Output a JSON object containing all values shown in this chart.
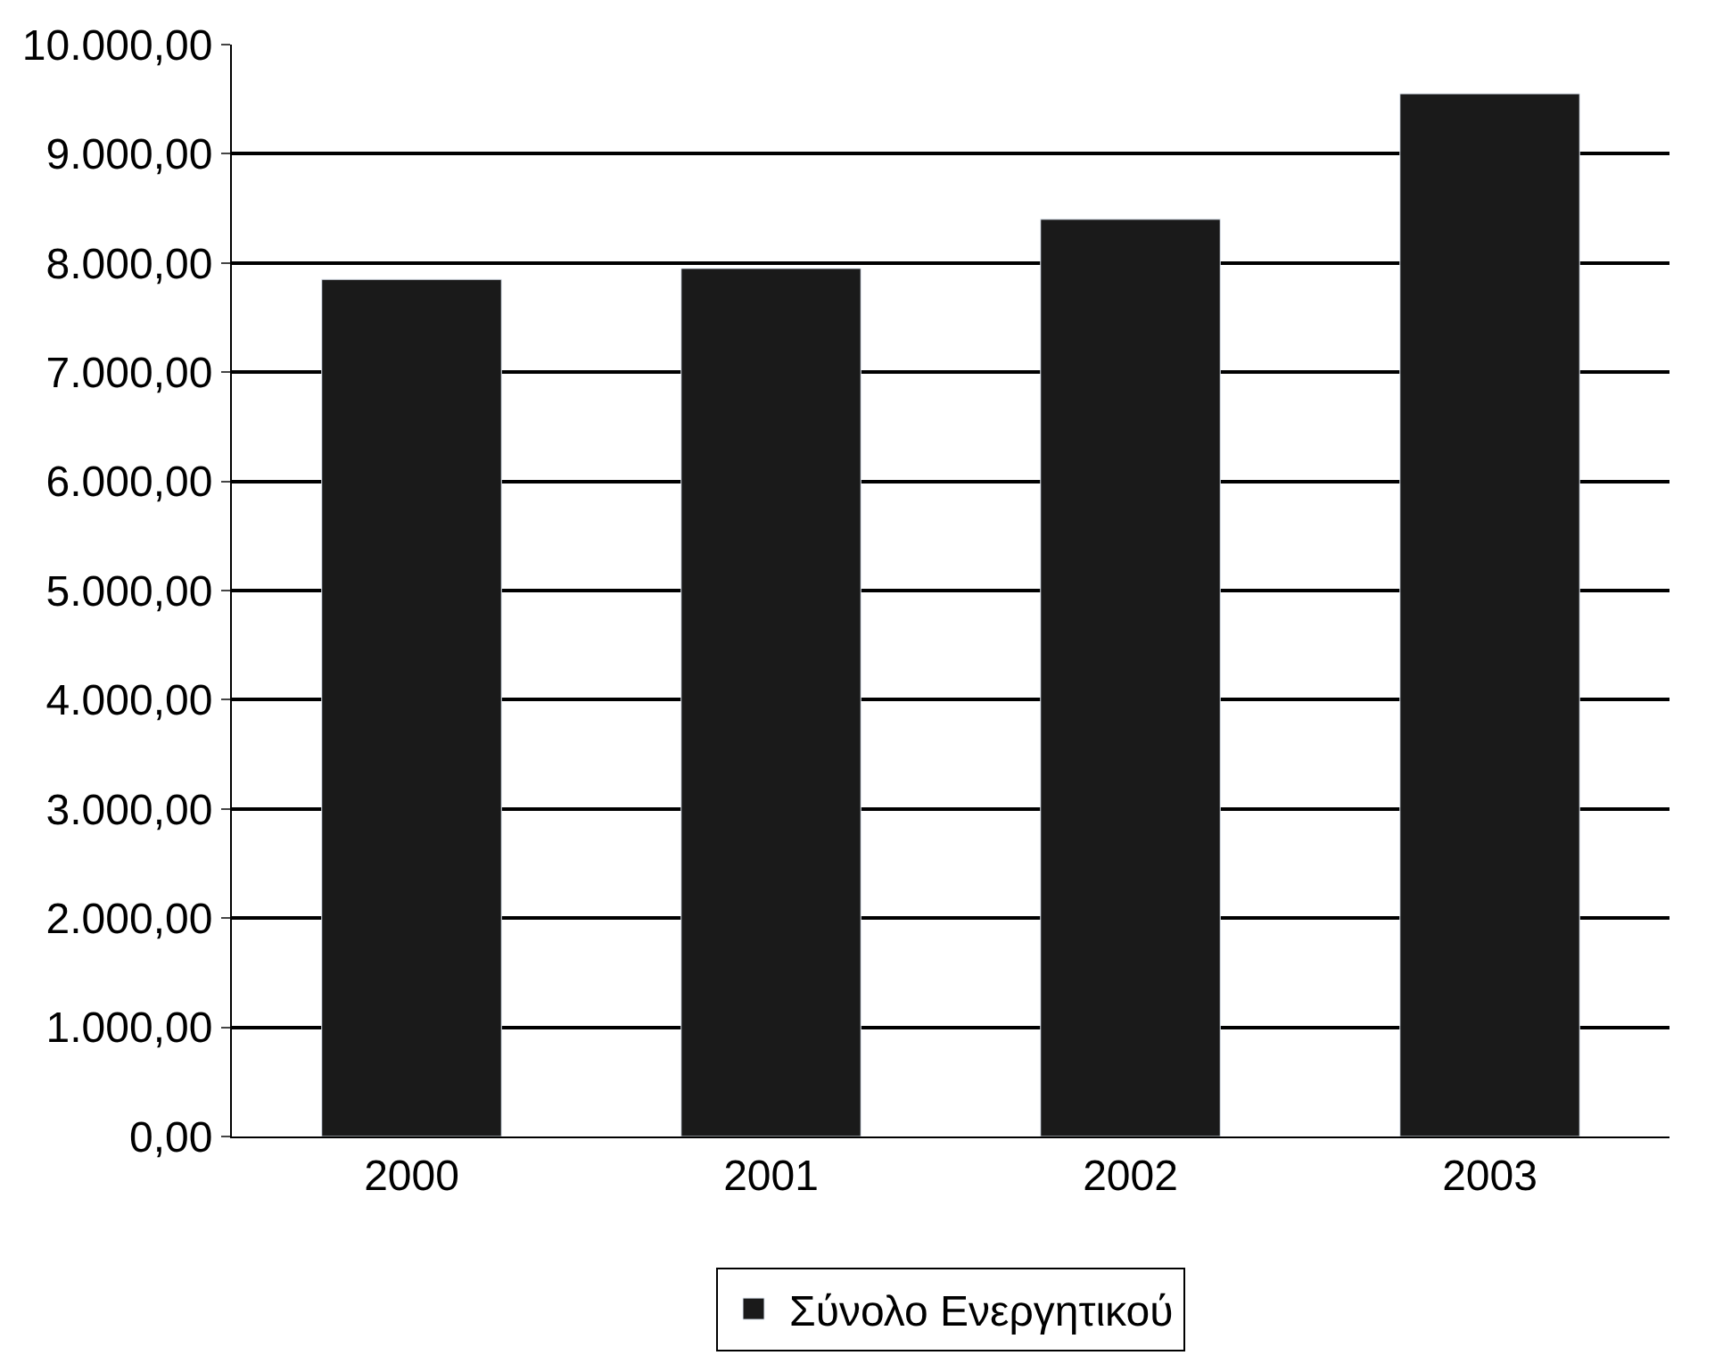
{
  "chart_data": {
    "type": "bar",
    "categories": [
      "2000",
      "2001",
      "2002",
      "2003"
    ],
    "series": [
      {
        "name": "Σύνολο Ενεργητικού",
        "color": "#1a1a1a",
        "values": [
          7850,
          7950,
          8400,
          9550
        ]
      }
    ],
    "ylim": [
      0,
      10000
    ],
    "yticks": [
      {
        "value": 0,
        "label": "0,00"
      },
      {
        "value": 1000,
        "label": "1.000,00"
      },
      {
        "value": 2000,
        "label": "2.000,00"
      },
      {
        "value": 3000,
        "label": "3.000,00"
      },
      {
        "value": 4000,
        "label": "4.000,00"
      },
      {
        "value": 5000,
        "label": "5.000,00"
      },
      {
        "value": 6000,
        "label": "6.000,00"
      },
      {
        "value": 7000,
        "label": "7.000,00"
      },
      {
        "value": 8000,
        "label": "8.000,00"
      },
      {
        "value": 9000,
        "label": "9.000,00"
      },
      {
        "value": 10000,
        "label": "10.000,00"
      }
    ],
    "grid": "y",
    "legend": "bottom"
  }
}
